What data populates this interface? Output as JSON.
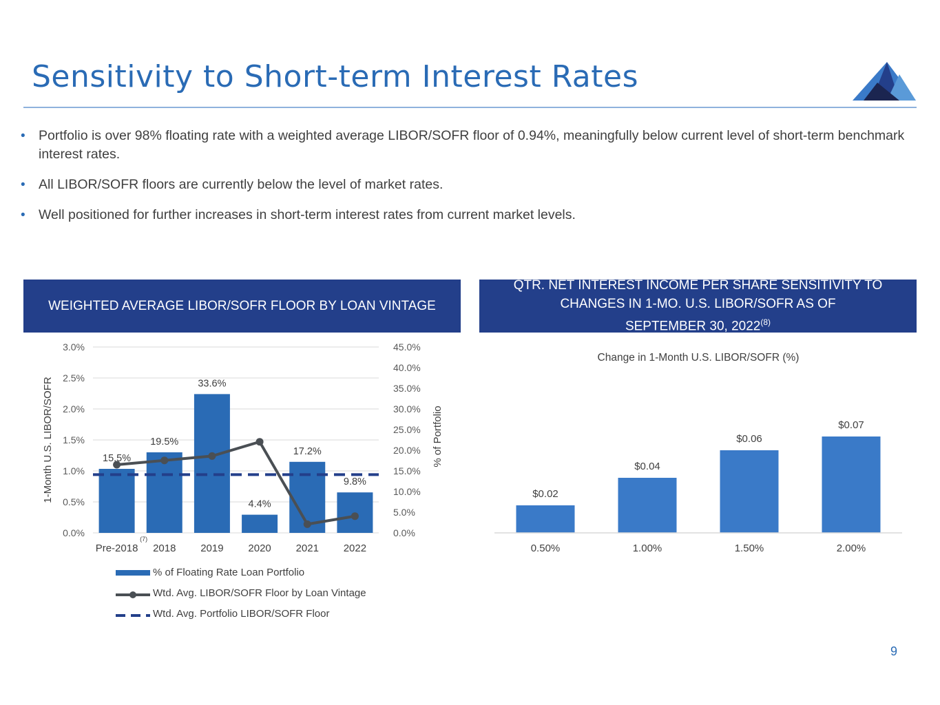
{
  "header": {
    "title": "Sensitivity to Short-term Interest Rates",
    "logo_icon": "mountain-logo-icon",
    "accent_color": "#2a6bb5"
  },
  "bullets": [
    {
      "text": "Portfolio is over 98% floating rate with a weighted average LIBOR/SOFR floor of 0.94%, meaningfully below current level of short-term benchmark interest rates."
    },
    {
      "text": "All LIBOR/SOFR floors are currently below the level of market rates."
    },
    {
      "text": "Well positioned for further increases in short-term interest rates from current market levels."
    }
  ],
  "panels": {
    "left_title": "WEIGHTED AVERAGE LIBOR/SOFR FLOOR BY LOAN VINTAGE",
    "right_title_line1": "QTR. NET INTEREST INCOME PER SHARE SENSITIVITY TO",
    "right_title_line2": "CHANGES IN 1-MO. U.S. LIBOR/SOFR AS OF",
    "right_title_line3": "SEPTEMBER 30, 2022",
    "right_title_footnote": "(8)",
    "header_color": "#233f8a"
  },
  "page_number": "9",
  "chart_data": [
    {
      "type": "bar",
      "categories": [
        "Pre-2018",
        "2018",
        "2019",
        "2020",
        "2021",
        "2022"
      ],
      "category_footnote": {
        "category": "Pre-2018",
        "mark": "(7)"
      },
      "series": [
        {
          "name": "% of Floating Rate Loan Portfolio",
          "type": "bar",
          "axis": "right",
          "values": [
            15.5,
            19.5,
            33.6,
            4.4,
            17.2,
            9.8
          ],
          "data_labels": [
            "15.5%",
            "19.5%",
            "33.6%",
            "4.4%",
            "17.2%",
            "9.8%"
          ],
          "color": "#2a6bb5"
        },
        {
          "name": "Wtd. Avg. LIBOR/SOFR Floor by Loan Vintage",
          "type": "line",
          "axis": "left",
          "values": [
            1.1,
            1.17,
            1.24,
            1.47,
            0.14,
            0.27
          ],
          "color": "#4a4f54"
        },
        {
          "name": "Wtd. Avg. Portfolio LIBOR/SOFR Floor",
          "type": "line-dashed",
          "axis": "left",
          "values": [
            0.94,
            0.94,
            0.94,
            0.94,
            0.94,
            0.94
          ],
          "color": "#233f8a"
        }
      ],
      "ylabel": "1-Month U.S. LIBOR/SOFR",
      "y2label": "% of Portfolio",
      "ylim": [
        0,
        3.0
      ],
      "y2lim": [
        0,
        45.0
      ],
      "yticks": [
        "0.0%",
        "0.5%",
        "1.0%",
        "1.5%",
        "2.0%",
        "2.5%",
        "3.0%"
      ],
      "y2ticks": [
        "0.0%",
        "5.0%",
        "10.0%",
        "15.0%",
        "20.0%",
        "25.0%",
        "30.0%",
        "35.0%",
        "40.0%",
        "45.0%"
      ],
      "grid": true,
      "legend_position": "bottom"
    },
    {
      "type": "bar",
      "title": "Change in 1-Month U.S. LIBOR/SOFR (%)",
      "categories": [
        "0.50%",
        "1.00%",
        "1.50%",
        "2.00%"
      ],
      "values": [
        0.02,
        0.04,
        0.06,
        0.07
      ],
      "data_labels": [
        "$0.02",
        "$0.04",
        "$0.06",
        "$0.07"
      ],
      "ylim": [
        0,
        0.1
      ],
      "grid": false,
      "color": "#3a7ac8"
    }
  ]
}
